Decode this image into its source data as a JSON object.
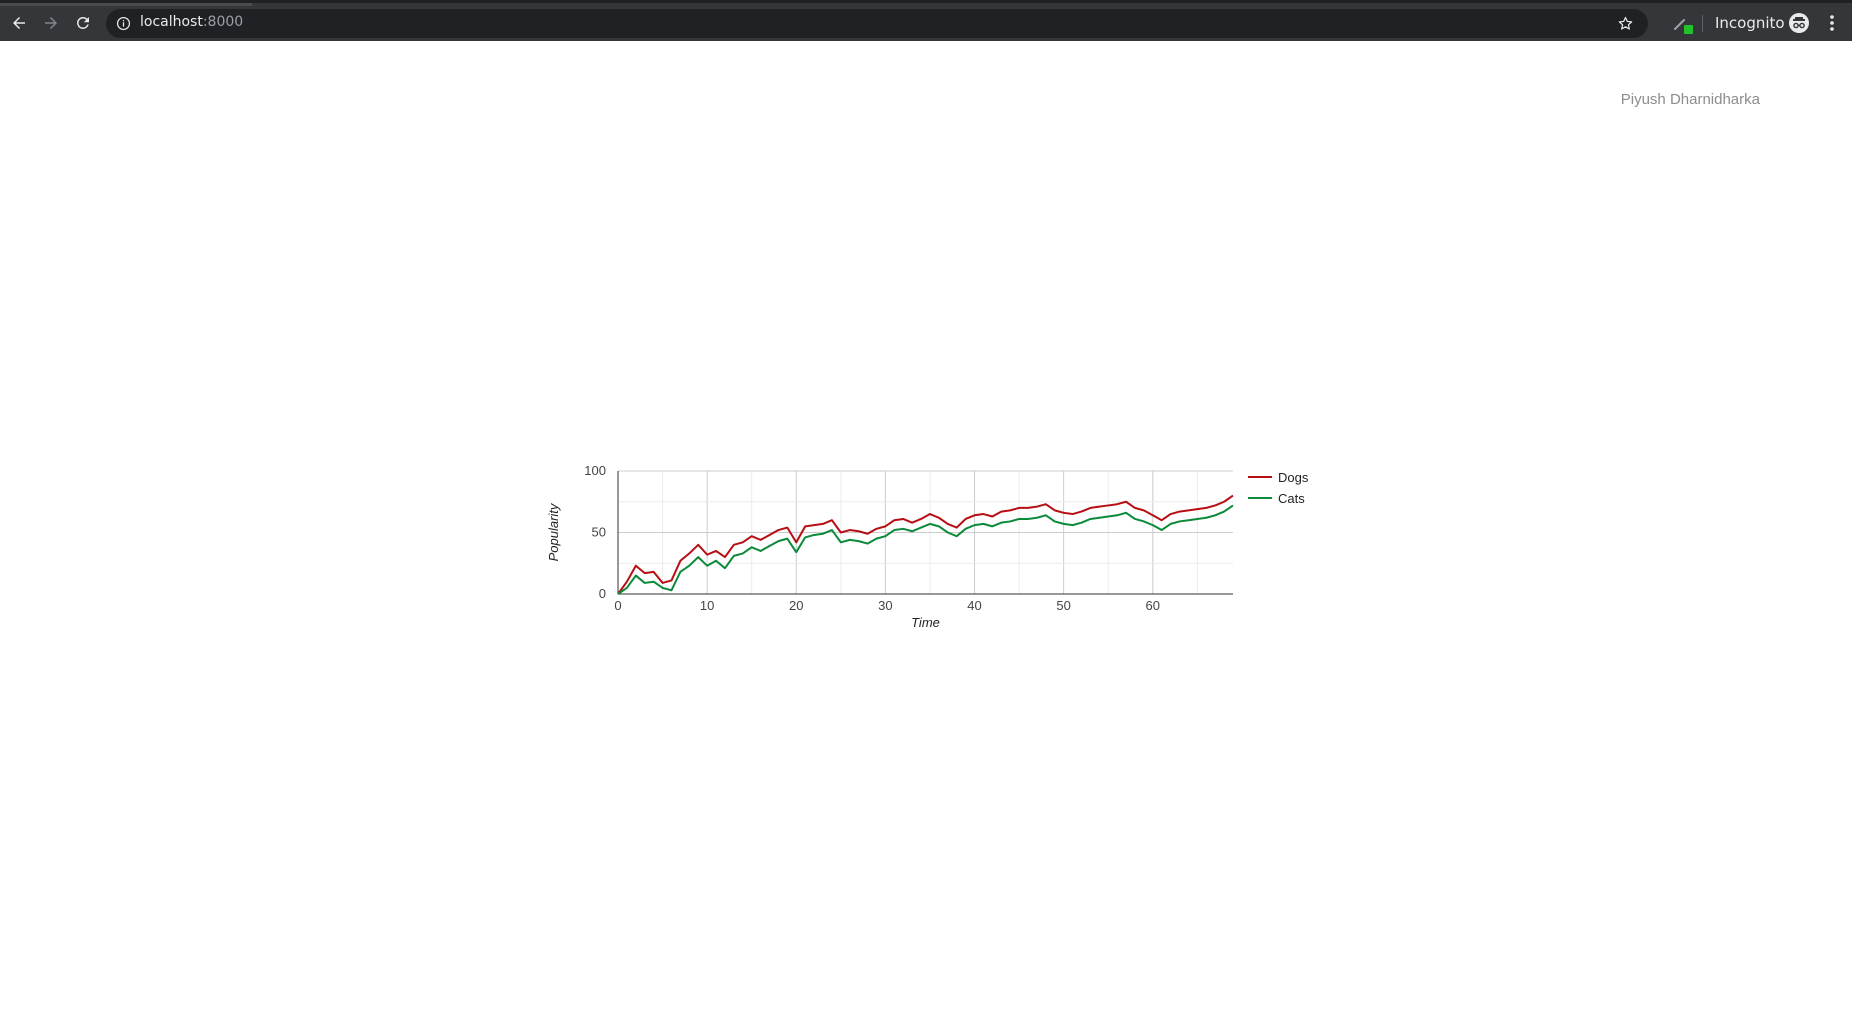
{
  "browser": {
    "url_host": "localhost",
    "url_port": ":8000",
    "incognito_label": "Incognito"
  },
  "page": {
    "author": "Piyush Dharnidharka"
  },
  "colors": {
    "dogs": "#b70e14",
    "cats": "#0b8a3a"
  },
  "chart_data": {
    "type": "line",
    "title": "",
    "xlabel": "Time",
    "ylabel": "Popularity",
    "xlim": [
      0,
      69
    ],
    "ylim": [
      0,
      100
    ],
    "xticks": [
      0,
      10,
      20,
      30,
      40,
      50,
      60
    ],
    "yticks": [
      0,
      50,
      100
    ],
    "grid": true,
    "legend_position": "right",
    "x": [
      0,
      1,
      2,
      3,
      4,
      5,
      6,
      7,
      8,
      9,
      10,
      11,
      12,
      13,
      14,
      15,
      16,
      17,
      18,
      19,
      20,
      21,
      22,
      23,
      24,
      25,
      26,
      27,
      28,
      29,
      30,
      31,
      32,
      33,
      34,
      35,
      36,
      37,
      38,
      39,
      40,
      41,
      42,
      43,
      44,
      45,
      46,
      47,
      48,
      49,
      50,
      51,
      52,
      53,
      54,
      55,
      56,
      57,
      58,
      59,
      60,
      61,
      62,
      63,
      64,
      65,
      66,
      67,
      68,
      69
    ],
    "series": [
      {
        "name": "Dogs",
        "values": [
          0,
          10,
          23,
          17,
          18,
          9,
          11,
          27,
          33,
          40,
          32,
          35,
          30,
          40,
          42,
          47,
          44,
          48,
          52,
          54,
          42,
          55,
          56,
          57,
          60,
          50,
          52,
          51,
          49,
          53,
          55,
          60,
          61,
          58,
          61,
          65,
          62,
          57,
          54,
          61,
          64,
          65,
          63,
          67,
          68,
          70,
          70,
          71,
          73,
          68,
          66,
          65,
          67,
          70,
          71,
          72,
          73,
          75,
          70,
          68,
          64,
          60,
          65,
          67,
          68,
          69,
          70,
          72,
          75,
          80
        ]
      },
      {
        "name": "Cats",
        "values": [
          0,
          5,
          15,
          9,
          10,
          5,
          3,
          18,
          23,
          30,
          23,
          27,
          21,
          31,
          33,
          38,
          35,
          39,
          43,
          45,
          34,
          46,
          48,
          49,
          52,
          42,
          44,
          43,
          41,
          45,
          47,
          52,
          53,
          51,
          54,
          57,
          55,
          50,
          47,
          53,
          56,
          57,
          55,
          58,
          59,
          61,
          61,
          62,
          64,
          59,
          57,
          56,
          58,
          61,
          62,
          63,
          64,
          66,
          61,
          59,
          56,
          52,
          57,
          59,
          60,
          61,
          62,
          64,
          67,
          72
        ]
      }
    ]
  }
}
